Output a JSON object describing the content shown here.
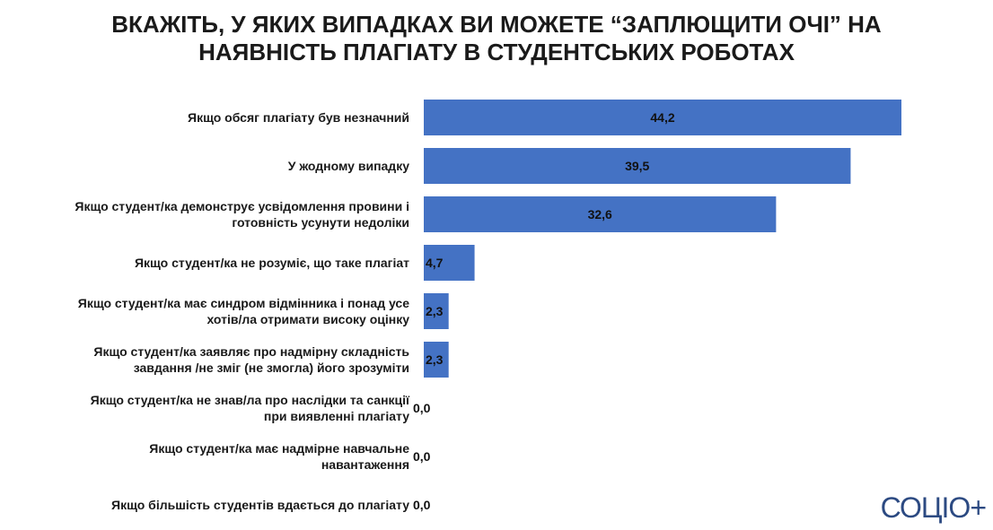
{
  "chart_data": {
    "type": "bar",
    "orientation": "horizontal",
    "title": [
      "ВКАЖІТЬ, У ЯКИХ ВИПАДКАХ ВИ МОЖЕТЕ “ЗАПЛЮЩИТИ ОЧІ” НА",
      "НАЯВНІСТЬ ПЛАГІАТУ В СТУДЕНТСЬКИХ РОБОТАХ"
    ],
    "categories": [
      [
        "Якщо обсяг плагіату був незначний"
      ],
      [
        "У жодному випадку"
      ],
      [
        "Якщо студент/ка демонструє усвідомлення провини і",
        "готовність усунути недоліки"
      ],
      [
        "Якщо студент/ка не розуміє, що таке плагіат"
      ],
      [
        "Якщо студент/ка має синдром відмінника і понад усе",
        "хотів/ла отримати високу оцінку"
      ],
      [
        "Якщо студент/ка заявляє про надмірну складність",
        "завдання /не зміг (не змогла) його зрозуміти"
      ],
      [
        "Якщо студент/ка не знав/ла про наслідки та санкції",
        "при виявленні плагіату"
      ],
      [
        "Якщо студент/ка має надмірне навчальне",
        "навантаження"
      ],
      [
        "Якщо більшість студентів вдається до плагіату"
      ]
    ],
    "values": [
      44.2,
      39.5,
      32.6,
      4.7,
      2.3,
      2.3,
      0.0,
      0.0,
      0.0
    ],
    "value_labels": [
      "44,2",
      "39,5",
      "32,6",
      "4,7",
      "2,3",
      "2,3",
      "0,0",
      "0,0",
      "0,0"
    ],
    "bar_color": "#4472c4",
    "xlim": [
      0,
      44.2
    ],
    "grid": false,
    "legend": "none"
  },
  "logo": {
    "text": "СОЦІО+"
  }
}
